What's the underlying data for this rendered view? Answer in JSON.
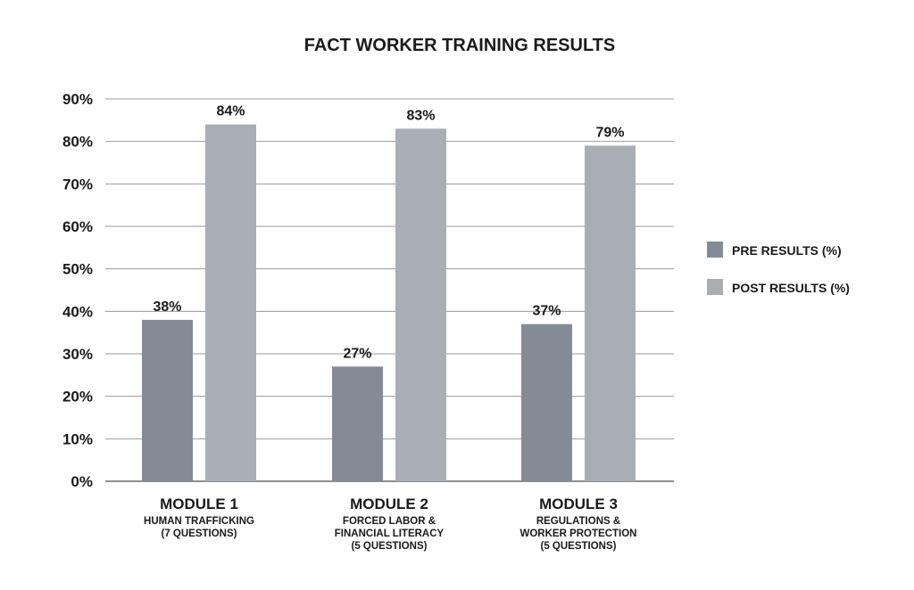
{
  "chart_data": {
    "type": "bar",
    "title": "FACT WORKER TRAINING RESULTS",
    "categories": [
      "MODULE 1",
      "MODULE 2",
      "MODULE 3"
    ],
    "category_subtitles": [
      [
        "HUMAN TRAFFICKING",
        "(7 QUESTIONS)"
      ],
      [
        "FORCED LABOR &",
        "FINANCIAL LITERACY",
        "(5 QUESTIONS)"
      ],
      [
        "REGULATIONS &",
        "WORKER PROTECTION",
        "(5 QUESTIONS)"
      ]
    ],
    "series": [
      {
        "name": "PRE RESULTS (%)",
        "values": [
          38,
          27,
          37
        ],
        "labels": [
          "38%",
          "27%",
          "37%"
        ],
        "color": "#838c96"
      },
      {
        "name": "POST RESULTS (%)",
        "values": [
          84,
          83,
          79
        ],
        "labels": [
          "84%",
          "83%",
          "79%"
        ],
        "color": "#a9aeb4"
      }
    ],
    "ylim": [
      0,
      90
    ],
    "yticks": [
      "0%",
      "10%",
      "20%",
      "30%",
      "40%",
      "50%",
      "60%",
      "70%",
      "80%",
      "90%"
    ],
    "xlabel": "",
    "ylabel": "",
    "grid": true,
    "legend_position": "right"
  }
}
